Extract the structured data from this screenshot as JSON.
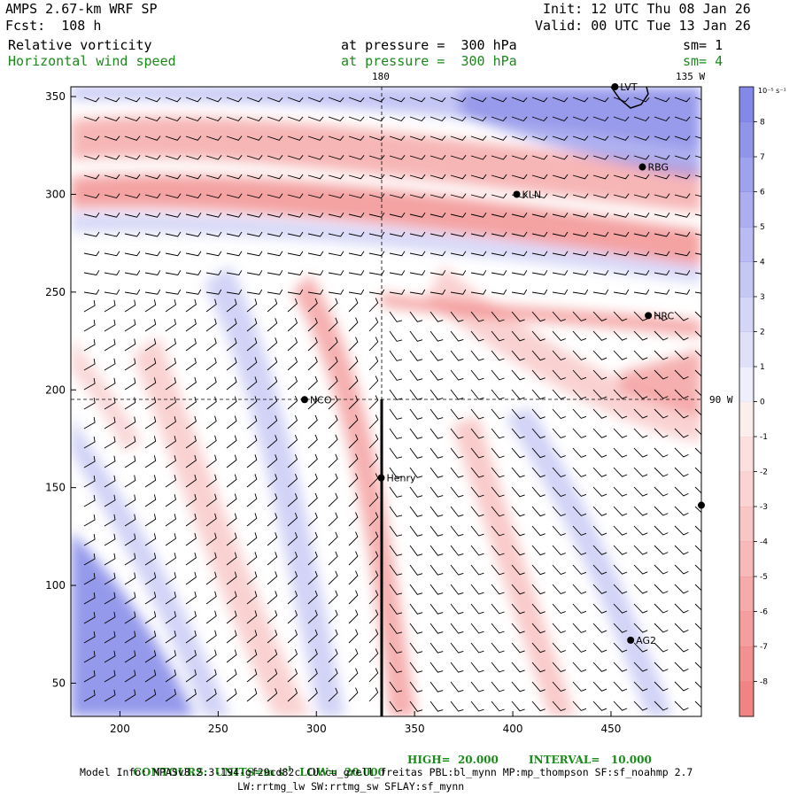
{
  "header": {
    "model": "AMPS 2.67-km WRF SP",
    "forecast": "Fcst:  108 h",
    "init": "Init: 12 UTC Thu 08 Jan 26",
    "valid": "Valid: 00 UTC Tue 13 Jan 26",
    "field1": "Relative vorticity",
    "field1_pressure": "at pressure =  300 hPa",
    "field1_sm": "sm= 1",
    "field2": "Horizontal wind speed",
    "field2_pressure": "at pressure =  300 hPa",
    "field2_sm": "sm= 4"
  },
  "map": {
    "x_ticks": [
      "200",
      "250",
      "300",
      "350",
      "400",
      "450"
    ],
    "y_ticks": [
      "350",
      "300",
      "250",
      "200",
      "150",
      "100",
      "50"
    ],
    "lon_top_180": "180",
    "lon_top_135w": "135 W",
    "lon_right_90w": "90 W",
    "stations": [
      {
        "label": "LVT",
        "x": 452,
        "y": 355
      },
      {
        "label": "RBG",
        "x": 466,
        "y": 314
      },
      {
        "label": "KLN",
        "x": 402,
        "y": 300
      },
      {
        "label": "HRC",
        "x": 469,
        "y": 238
      },
      {
        "label": "NCO",
        "x": 294,
        "y": 195
      },
      {
        "label": "Henry",
        "x": 333,
        "y": 155
      },
      {
        "label": "",
        "x": 496,
        "y": 141
      },
      {
        "label": "AG2",
        "x": 460,
        "y": 72
      }
    ]
  },
  "colorbar": {
    "units": "10⁻⁵ s⁻¹",
    "labels": [
      "8",
      "7",
      "6",
      "5",
      "4",
      "3",
      "2",
      "1",
      "0",
      "-1",
      "-2",
      "-3",
      "-4",
      "-5",
      "-6",
      "-7",
      "-8"
    ],
    "positive_color": "#7b7fe6",
    "negative_color": "#f07a7a"
  },
  "footer": {
    "contours_label": "CONTOURS:  UNITS=m s",
    "contours_sup": "-1",
    "low": "LOW=  20.000",
    "high": "HIGH=  20.000",
    "interval": "INTERVAL=   10.000",
    "model_info": "Model Info: MPASv8.2.3-194-gf29cd82c CU:cu_grell_freitas PBL:bl_mynn MP:mp_thompson SF:sf_noahmp 2.7",
    "model_info2": "LW:rrtmg_lw SW:rrtmg_sw SFLAY:sf_mynn"
  }
}
